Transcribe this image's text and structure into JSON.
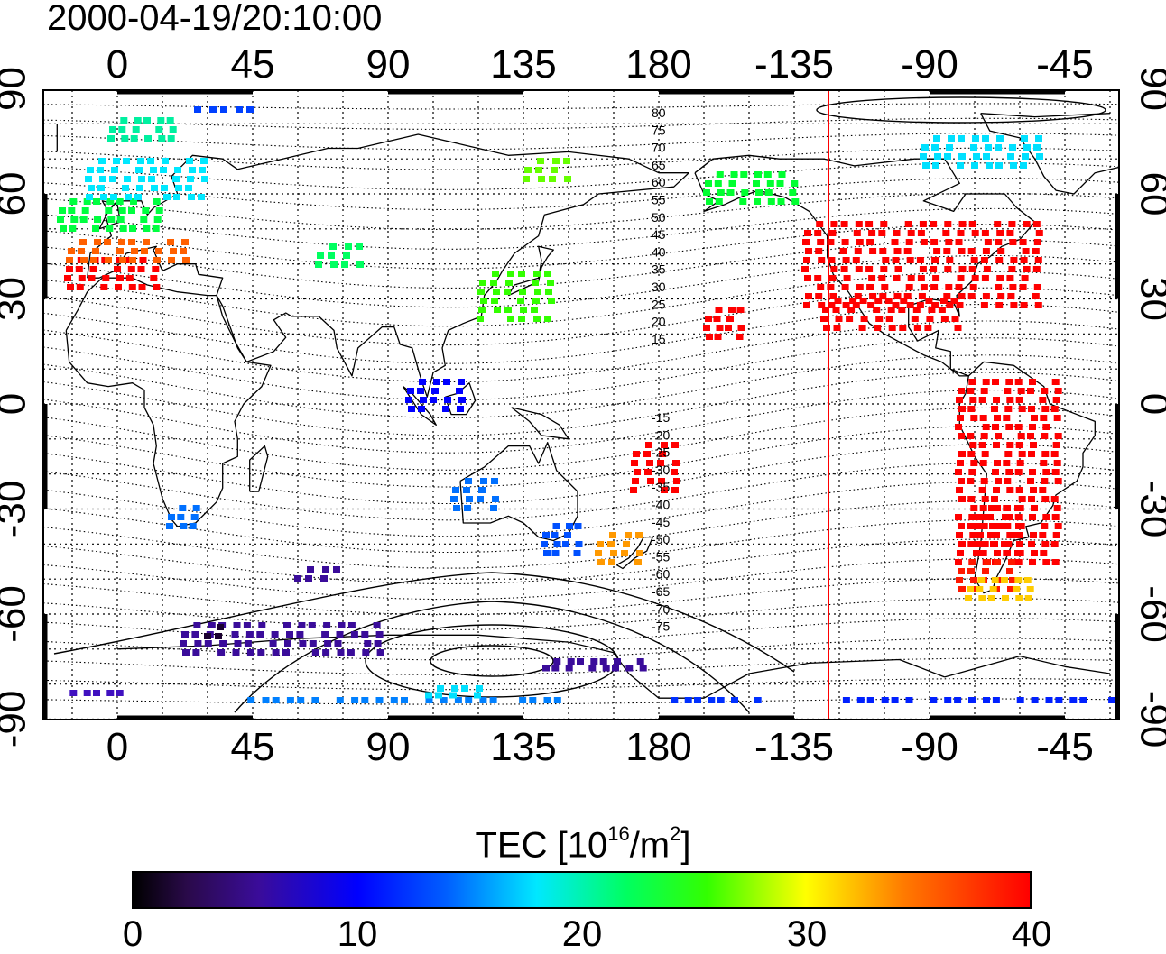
{
  "title": "2000-04-19/20:10:00",
  "colorbar": {
    "label_prefix": "TEC  [10",
    "label_exp1": "16",
    "label_mid": "/m",
    "label_exp2": "2",
    "label_suffix": "]",
    "ticks": [
      "0",
      "10",
      "20",
      "30",
      "40"
    ]
  },
  "map": {
    "lon_ticks_top": [
      "0",
      "45",
      "90",
      "135",
      "180",
      "-135",
      "-90",
      "-45"
    ],
    "lon_ticks_bottom": [
      "0",
      "45",
      "90",
      "135",
      "180",
      "-135",
      "-90",
      "-45"
    ],
    "lat_ticks": [
      "90",
      "60",
      "30",
      "0",
      "-30",
      "-60",
      "-90"
    ],
    "contour_labels_north": [
      "80",
      "75",
      "70",
      "65",
      "60",
      "55",
      "50",
      "45",
      "40",
      "35",
      "30",
      "25",
      "20",
      "15"
    ],
    "contour_labels_south": [
      "-15",
      "-20",
      "-25",
      "-30",
      "-35",
      "-40",
      "-45",
      "-50",
      "-55",
      "-60",
      "-65",
      "-70",
      "-75"
    ],
    "colors": {
      "sun_line": "#ff0000",
      "coast": "#000000",
      "grid": "#000000"
    }
  }
}
